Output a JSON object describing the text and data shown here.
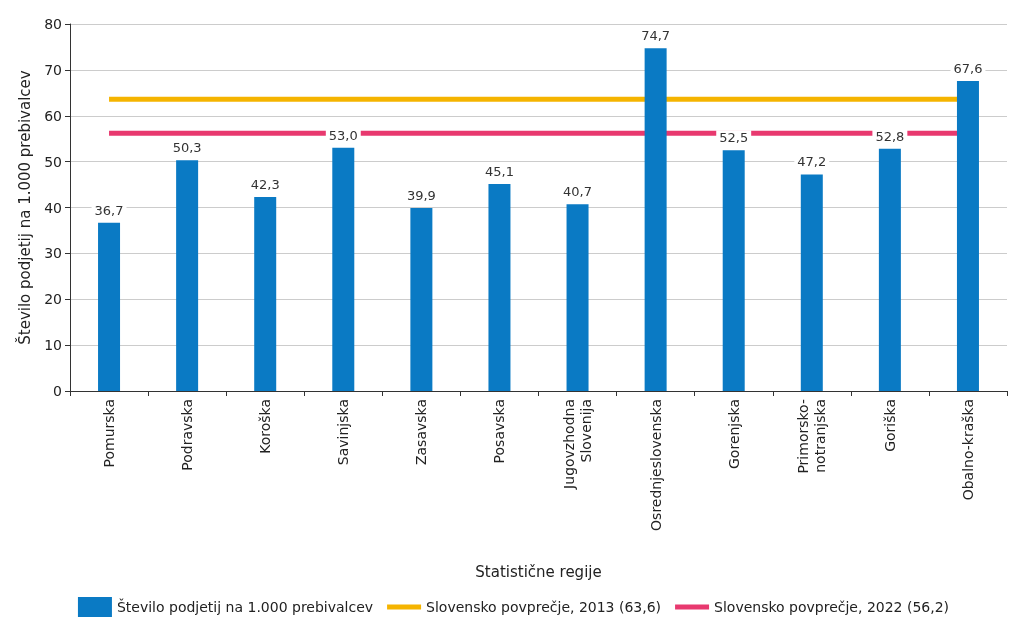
{
  "chart_data": {
    "type": "bar",
    "xlabel": "Statistične regije",
    "ylabel": "Število podjetij na 1.000 prebivalcev",
    "categories": [
      "Pomurska",
      "Podravska",
      "Koroška",
      "Savinjska",
      "Zasavska",
      "Posavska",
      "Jugovzhodna\nSlovenija",
      "Osrednjeslovenska",
      "Gorenjska",
      "Primorsko-\nnotranjska",
      "Goriška",
      "Obalno-kraška"
    ],
    "series": [
      {
        "name": "Število podjetij na 1.000 prebivalcev",
        "color": "#0a7ac4",
        "values": [
          36.7,
          50.3,
          42.3,
          53.0,
          39.9,
          45.1,
          40.7,
          74.7,
          52.5,
          47.2,
          52.8,
          67.6
        ],
        "value_labels": [
          "36,7",
          "50,3",
          "42,3",
          "53,0",
          "39,9",
          "45,1",
          "40,7",
          "74,7",
          "52,5",
          "47,2",
          "52,8",
          "67,6"
        ]
      }
    ],
    "ref_lines": [
      {
        "axis": "y",
        "value": 63.6,
        "label": "Slovensko povprečje, 2013 (63,6)",
        "color": "#f5b400"
      },
      {
        "axis": "y",
        "value": 56.2,
        "label": "Slovensko povprečje, 2022 (56,2)",
        "color": "#e8396f"
      }
    ],
    "ylim": [
      0,
      80
    ],
    "yticks": [
      0,
      10,
      20,
      30,
      40,
      50,
      60,
      70,
      80
    ],
    "grid": "y",
    "legend": "bottom"
  }
}
